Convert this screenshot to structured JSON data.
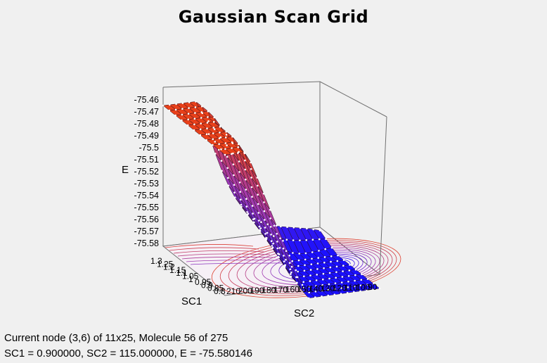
{
  "window": {
    "title": "Gaussian Scan Grid"
  },
  "status": {
    "line1": "Current node (3,6) of 11x25, Molecule 56 of 275",
    "line2": "SC1 = 0.900000, SC2 = 115.000000, E = -75.580146"
  },
  "colors": {
    "background": "#f0f0f0",
    "surface_high": "#e8401a",
    "surface_mid": "#a03ab0",
    "surface_low": "#1a10ff",
    "mesh_point": "#ffffff",
    "box_lines": "#606060"
  },
  "chart_data": {
    "type": "surface",
    "title": "Gaussian Scan Grid",
    "zlabel": "E",
    "xlabel": "SC1",
    "ylabel": "SC2",
    "z_ticks": [
      "-75.46",
      "-75.47",
      "-75.48",
      "-75.49",
      "-75.5",
      "-75.51",
      "-75.52",
      "-75.53",
      "-75.54",
      "-75.55",
      "-75.56",
      "-75.57",
      "-75.58"
    ],
    "sc1_ticks": [
      "1.3",
      "1.25",
      "1.2",
      "1.15",
      "1.1",
      "1.05",
      "1",
      "0.95",
      "0.9",
      "0.85",
      "0.8"
    ],
    "sc2_ticks": [
      "210",
      "200",
      "190",
      "180",
      "170",
      "160",
      "150",
      "140",
      "130",
      "120",
      "110",
      "100",
      "90"
    ],
    "grid_size": [
      11,
      25
    ],
    "zlim": [
      -75.58,
      -75.46
    ],
    "grid": true,
    "contour_on_base": true
  }
}
